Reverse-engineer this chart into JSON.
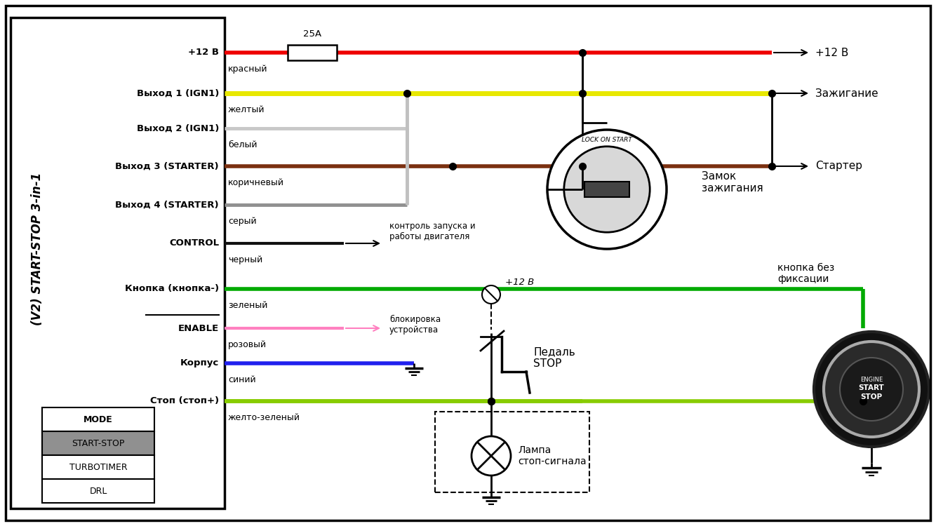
{
  "bg_color": "#ffffff",
  "fig_width": 13.34,
  "fig_height": 7.5,
  "connector_label": "(V2) START-STOP 3-in-1",
  "mode_header": "MODE",
  "mode_rows": [
    "START-STOP",
    "TURBOTIMER",
    "DRL"
  ],
  "wire_labels_left": [
    "+12 В",
    "Выход 1 (IGN1)",
    "Выход 2 (IGN1)",
    "Выход 3 (STARTER)",
    "Выход 4 (STARTER)",
    "CONTROL",
    "Кнопка (кнопка-)",
    "ENABLE",
    "Корпус",
    "Стоп (стоп+)"
  ],
  "wire_colors": [
    "#ee0000",
    "#e8e800",
    "#b0b0b0",
    "#7b3010",
    "#909090",
    "#111111",
    "#00aa00",
    "#ff80c0",
    "#2020ee",
    "#88cc00"
  ],
  "wire_labels_wire": [
    "красный",
    "желтый",
    "белый",
    "коричневый",
    "серый",
    "черный",
    "зеленый",
    "розовый",
    "синий",
    "желто-зеленый"
  ],
  "right_labels": [
    "+12 В",
    "Зажигание",
    "Стартер"
  ],
  "label_control": "контроль запуска и\nработы двигателя",
  "label_enable": "блокировка\nустройства",
  "label_button": "кнопка без\nфиксации",
  "label_lock": "Замок\nзажигания",
  "label_pedal": "Педаль\nSTOP",
  "label_lamp": "Лампа\nстоп-сигнала",
  "label_fuse": "25A",
  "label_lock_inner": "LOCK ON START",
  "label_12v_pedal": "+12 В",
  "label_engine": "ENGINE",
  "label_start": "START",
  "label_stop_btn": "STOP"
}
